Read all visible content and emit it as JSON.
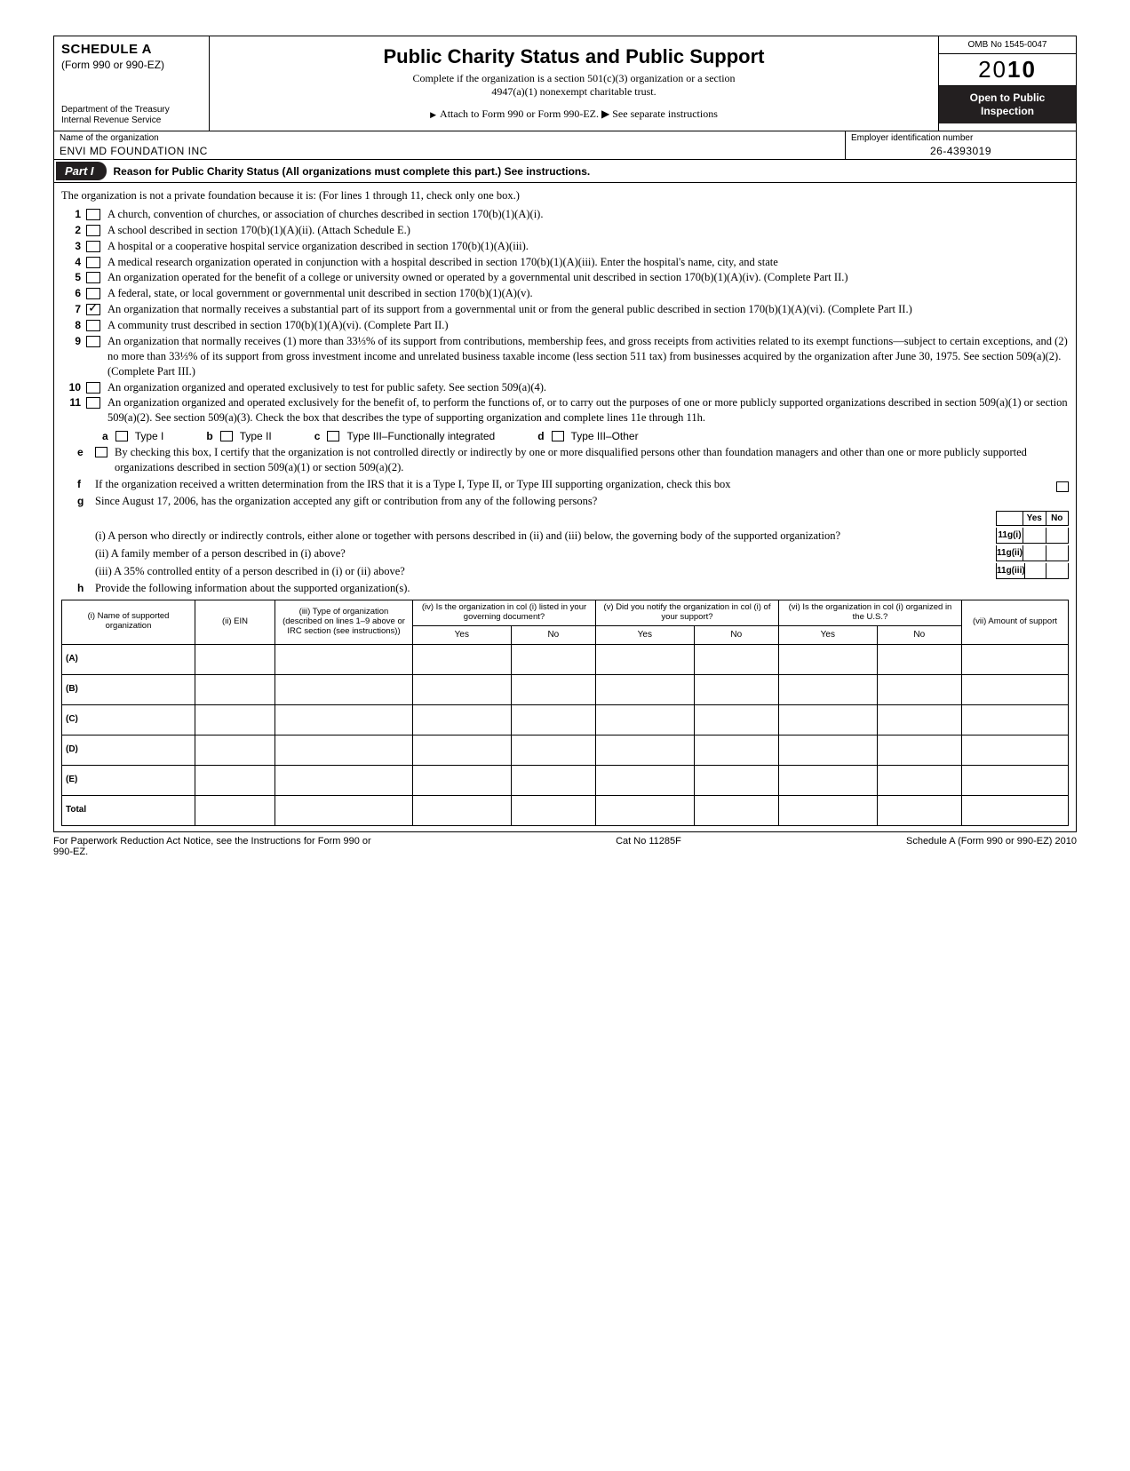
{
  "header": {
    "schedule": "SCHEDULE A",
    "form_ref": "(Form 990 or 990-EZ)",
    "dept1": "Department of the Treasury",
    "dept2": "Internal Revenue Service",
    "title": "Public Charity Status and Public Support",
    "subtitle1": "Complete if the organization is a section 501(c)(3) organization or a section",
    "subtitle2": "4947(a)(1) nonexempt charitable trust.",
    "attach": "Attach to Form 990 or Form 990-EZ.  ▶ See separate instructions",
    "omb": "OMB No  1545-0047",
    "year_prefix": "20",
    "year_bold": "10",
    "open1": "Open to Public",
    "open2": "Inspection"
  },
  "org": {
    "name_label": "Name of the organization",
    "name_value": "ENVI MD FOUNDATION INC",
    "ein_label": "Employer identification number",
    "ein_value": "26-4393019"
  },
  "part1": {
    "tag": "Part I",
    "title": "Reason for Public Charity Status (All organizations must complete this part.) See instructions.",
    "intro": "The organization is not a private foundation because it is: (For lines 1 through 11, check only one box.)",
    "lines": [
      {
        "n": "1",
        "t": "A church, convention of churches, or association of churches described in section 170(b)(1)(A)(i)."
      },
      {
        "n": "2",
        "t": "A school described in section 170(b)(1)(A)(ii). (Attach Schedule E.)"
      },
      {
        "n": "3",
        "t": "A hospital or a cooperative hospital service organization described in section 170(b)(1)(A)(iii)."
      },
      {
        "n": "4",
        "t": "A medical research organization operated in conjunction with a hospital described in section 170(b)(1)(A)(iii). Enter the hospital's name, city, and state"
      },
      {
        "n": "5",
        "t": "An organization operated for the benefit of a college or university owned or operated by a governmental unit described in section 170(b)(1)(A)(iv). (Complete Part II.)"
      },
      {
        "n": "6",
        "t": "A federal, state, or local government or governmental unit described in section 170(b)(1)(A)(v)."
      },
      {
        "n": "7",
        "t": "An organization that normally receives a substantial part of its support from a governmental unit or from the general public described in section 170(b)(1)(A)(vi). (Complete Part II.)",
        "checked": true
      },
      {
        "n": "8",
        "t": "A community trust described in section 170(b)(1)(A)(vi). (Complete Part II.)"
      },
      {
        "n": "9",
        "t": "An organization that normally receives  (1) more than 33⅓% of its support from contributions, membership fees, and gross receipts from activities related to its exempt functions—subject to certain exceptions, and (2) no more than 33⅓% of its support from gross investment income and unrelated business taxable income (less section 511 tax) from businesses acquired by the organization after June 30, 1975. See section 509(a)(2). (Complete Part III.)"
      },
      {
        "n": "10",
        "t": "An organization organized and operated exclusively to test for public safety. See section 509(a)(4)."
      },
      {
        "n": "11",
        "t": "An organization organized and operated exclusively for the benefit of, to perform the functions of, or to carry out the purposes of one or more publicly supported organizations described in section 509(a)(1) or section 509(a)(2). See section 509(a)(3). Check the box that describes the type of supporting organization and complete lines 11e through 11h."
      }
    ],
    "types": {
      "a": "Type I",
      "b": "Type II",
      "c": "Type III–Functionally integrated",
      "d": "Type III–Other"
    },
    "e": "By checking this box, I certify that the organization is not controlled directly or indirectly by one or more disqualified persons other than foundation managers and other than one or more publicly supported organizations described in section 509(a)(1) or section 509(a)(2).",
    "f": "If the organization received a written determination from the IRS that it is a Type I, Type II, or Type III supporting organization, check this box",
    "g": "Since August 17, 2006, has the organization accepted any gift or contribution from any of the following persons?",
    "g_i": "(i)  A person who directly or indirectly controls, either alone or together with persons described in (ii) and (iii) below, the governing body of the supported organization?",
    "g_ii": "(ii) A family member of a person described in (i) above?",
    "g_iii": "(iii) A 35% controlled entity of a person described in (i) or (ii) above?",
    "h": "Provide the following information about the supported organization(s).",
    "yn_labels": {
      "yes": "Yes",
      "no": "No"
    },
    "g_codes": {
      "i": "11g(i)",
      "ii": "11g(ii)",
      "iii": "11g(iii)"
    }
  },
  "table": {
    "cols": [
      "(i) Name of supported organization",
      "(ii) EIN",
      "(iii) Type of organization (described on lines 1–9 above or IRC section (see instructions))",
      "(iv) Is the organization in col (i) listed in your governing document?",
      "(v) Did you notify the organization in col (i) of your support?",
      "(vi) Is the organization in col (i) organized in the U.S.?",
      "(vii) Amount of support"
    ],
    "subcols": {
      "yes": "Yes",
      "no": "No"
    },
    "rows": [
      "(A)",
      "(B)",
      "(C)",
      "(D)",
      "(E)",
      "Total"
    ]
  },
  "footer": {
    "left": "For Paperwork Reduction Act Notice, see the Instructions for Form 990 or 990-EZ.",
    "mid": "Cat No  11285F",
    "right": "Schedule A (Form 990 or 990-EZ) 2010"
  }
}
